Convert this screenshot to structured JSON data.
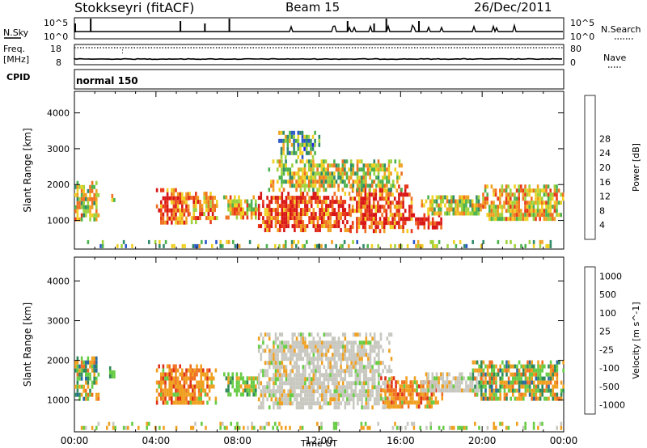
{
  "header": {
    "station": "Stokkseyri (fitACF)",
    "beam": "Beam 15",
    "date": "26/Dec/2011"
  },
  "top_strips": {
    "nsky_label": "N.Sky",
    "nsky_ticks": [
      "10^5",
      "10^0"
    ],
    "nsearch_label": "N.Search",
    "nsearch_ticks": [
      "10^5",
      "10^0"
    ],
    "freq_label": "Freq.",
    "freq_unit": "[MHz]",
    "freq_ticks": [
      "18",
      "8"
    ],
    "nave_label": "Nave",
    "nave_ticks": [
      "80",
      "0"
    ],
    "cpid_label": "CPID",
    "cpid_value": "normal 150",
    "nsky_spike_hours": [
      0.8,
      5.2,
      6.4,
      7.6,
      13.4,
      14.7,
      15.3,
      16.9
    ]
  },
  "chart_data": [
    {
      "type": "heatmap",
      "name": "power",
      "xlabel": "Time UT",
      "ylabel": "Slant Range [km]",
      "xlim": [
        0,
        24
      ],
      "ylim": [
        200,
        4600
      ],
      "x_ticks": [
        "00:00",
        "04:00",
        "08:00",
        "12:00",
        "16:00",
        "20:00",
        "00:00"
      ],
      "y_ticks": [
        1000,
        2000,
        3000,
        4000
      ],
      "colorbar": {
        "label": "Power [dB]",
        "ticks": [
          4,
          8,
          12,
          16,
          20,
          24,
          28
        ],
        "colors": [
          "#1e1ef0",
          "#2a55c8",
          "#2f8a6a",
          "#4cb24c",
          "#9fd23c",
          "#f0d020",
          "#f0a020",
          "#f07020",
          "#e83818",
          "#d81414"
        ]
      },
      "echo_regions": [
        {
          "t0": 0.0,
          "t1": 1.2,
          "r0": 1000,
          "r1": 2100,
          "level": 0.55
        },
        {
          "t0": 1.7,
          "t1": 2.0,
          "r0": 1600,
          "r1": 1850,
          "level": 0.45
        },
        {
          "t0": 4.0,
          "t1": 5.6,
          "r0": 900,
          "r1": 1900,
          "level": 0.8
        },
        {
          "t0": 5.6,
          "t1": 7.0,
          "r0": 1000,
          "r1": 1800,
          "level": 0.7
        },
        {
          "t0": 7.3,
          "t1": 9.0,
          "r0": 1100,
          "r1": 1700,
          "level": 0.6
        },
        {
          "t0": 9.0,
          "t1": 13.5,
          "r0": 700,
          "r1": 1800,
          "level": 0.85
        },
        {
          "t0": 13.5,
          "t1": 16.5,
          "r0": 700,
          "r1": 2000,
          "level": 0.8
        },
        {
          "t0": 16.5,
          "t1": 18.0,
          "r0": 800,
          "r1": 1200,
          "level": 0.95
        },
        {
          "t0": 9.5,
          "t1": 16.0,
          "r0": 1900,
          "r1": 2700,
          "level": 0.5
        },
        {
          "t0": 10.0,
          "t1": 12.0,
          "r0": 2800,
          "r1": 3500,
          "level": 0.35
        },
        {
          "t0": 17.0,
          "t1": 20.0,
          "r0": 1200,
          "r1": 1700,
          "level": 0.5
        },
        {
          "t0": 20.0,
          "t1": 24.0,
          "r0": 1000,
          "r1": 2000,
          "level": 0.6
        },
        {
          "t0": 0.0,
          "t1": 24.0,
          "r0": 250,
          "r1": 450,
          "level": 0.4
        }
      ]
    },
    {
      "type": "heatmap",
      "name": "velocity",
      "xlabel": "Time UT",
      "ylabel": "Slant Range [km]",
      "xlim": [
        0,
        24
      ],
      "ylim": [
        200,
        4600
      ],
      "x_ticks": [
        "00:00",
        "04:00",
        "08:00",
        "12:00",
        "16:00",
        "20:00",
        "00:00"
      ],
      "y_ticks": [
        1000,
        2000,
        3000,
        4000
      ],
      "colorbar": {
        "label": "Velocity [m s^-1]",
        "ticks": [
          1000,
          500,
          100,
          25,
          -25,
          -100,
          -500,
          -1000
        ],
        "colors": [
          "#1a28c8",
          "#2a6aa0",
          "#2f8a5a",
          "#66cc44",
          "#c8c8c0",
          "#f0a020",
          "#f07020",
          "#e03018",
          "#e00c0c"
        ]
      },
      "echo_regions": [
        {
          "t0": 0.0,
          "t1": 1.2,
          "r0": 1000,
          "r1": 2100,
          "class": "mixed"
        },
        {
          "t0": 1.7,
          "t1": 2.0,
          "r0": 1600,
          "r1": 1850,
          "class": "green"
        },
        {
          "t0": 4.0,
          "t1": 6.9,
          "r0": 900,
          "r1": 1900,
          "class": "orange"
        },
        {
          "t0": 7.3,
          "t1": 9.0,
          "r0": 1100,
          "r1": 1700,
          "class": "green"
        },
        {
          "t0": 9.0,
          "t1": 15.5,
          "r0": 800,
          "r1": 2700,
          "class": "grey"
        },
        {
          "t0": 15.0,
          "t1": 18.0,
          "r0": 800,
          "r1": 1600,
          "class": "orange"
        },
        {
          "t0": 17.0,
          "t1": 20.0,
          "r0": 1200,
          "r1": 1700,
          "class": "grey"
        },
        {
          "t0": 19.5,
          "t1": 24.0,
          "r0": 1000,
          "r1": 2000,
          "class": "mixed"
        },
        {
          "t0": 0.0,
          "t1": 24.0,
          "r0": 250,
          "r1": 450,
          "class": "sparse"
        }
      ]
    }
  ]
}
